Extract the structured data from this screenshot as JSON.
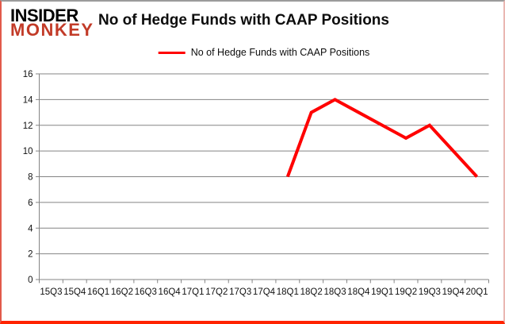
{
  "logo": {
    "line1": "INSIDER",
    "line2": "MONKEY"
  },
  "title": "No of Hedge Funds with CAAP Positions",
  "legend": {
    "label": "No of Hedge Funds with CAAP Positions"
  },
  "colors": {
    "line": "#ff0000",
    "grid": "#848484",
    "axis": "#848484",
    "tick_text": "#111111",
    "logo_black": "#000000",
    "logo_red": "#c23b28",
    "frame_bottom": "#ff2400"
  },
  "chart_data": {
    "type": "line",
    "title": "No of Hedge Funds with CAAP Positions",
    "categories": [
      "15Q3",
      "15Q4",
      "16Q1",
      "16Q2",
      "16Q3",
      "16Q4",
      "17Q1",
      "17Q2",
      "17Q3",
      "17Q4",
      "18Q1",
      "18Q2",
      "18Q3",
      "18Q4",
      "19Q1",
      "19Q2",
      "19Q3",
      "19Q4",
      "20Q1"
    ],
    "series": [
      {
        "name": "No of Hedge Funds with CAAP Positions",
        "color": "#ff0000",
        "values": [
          null,
          null,
          null,
          null,
          null,
          null,
          null,
          null,
          null,
          null,
          8,
          13,
          14,
          13,
          12,
          11,
          12,
          10,
          8
        ]
      }
    ],
    "xlabel": "",
    "ylabel": "",
    "ylim": [
      0,
      16
    ],
    "yticks": [
      0,
      2,
      4,
      6,
      8,
      10,
      12,
      14,
      16
    ],
    "grid": true,
    "legend_position": "top-center"
  }
}
